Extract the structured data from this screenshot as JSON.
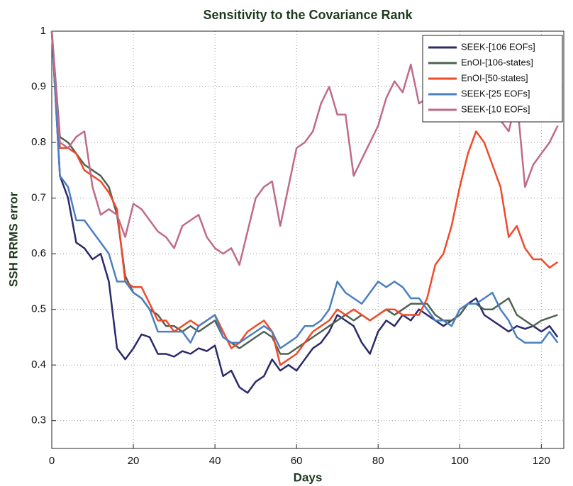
{
  "chart_data": {
    "type": "line",
    "title": "Sensitivity to the Covariance Rank",
    "x_label": "Days",
    "y_label": "SSH RRMS error",
    "x": [
      0,
      2,
      4,
      6,
      8,
      10,
      12,
      14,
      16,
      18,
      20,
      22,
      24,
      26,
      28,
      30,
      32,
      34,
      36,
      38,
      40,
      42,
      44,
      46,
      48,
      50,
      52,
      54,
      56,
      58,
      60,
      62,
      64,
      66,
      68,
      70,
      72,
      74,
      76,
      78,
      80,
      82,
      84,
      86,
      88,
      90,
      92,
      94,
      96,
      98,
      100,
      102,
      104,
      106,
      108,
      110,
      112,
      114,
      116,
      118,
      120,
      122,
      124
    ],
    "series": [
      {
        "name": "SEEK-[106 EOFs]",
        "color": "#2b2a6b",
        "values": [
          1.0,
          0.74,
          0.7,
          0.62,
          0.61,
          0.59,
          0.6,
          0.55,
          0.43,
          0.41,
          0.43,
          0.455,
          0.45,
          0.42,
          0.42,
          0.415,
          0.425,
          0.42,
          0.43,
          0.425,
          0.435,
          0.38,
          0.39,
          0.36,
          0.35,
          0.37,
          0.38,
          0.41,
          0.39,
          0.4,
          0.39,
          0.41,
          0.43,
          0.44,
          0.46,
          0.49,
          0.48,
          0.47,
          0.44,
          0.42,
          0.46,
          0.48,
          0.47,
          0.49,
          0.48,
          0.5,
          0.49,
          0.48,
          0.47,
          0.48,
          0.49,
          0.51,
          0.52,
          0.49,
          0.48,
          0.47,
          0.46,
          0.47,
          0.465,
          0.47,
          0.46,
          0.47,
          0.45
        ]
      },
      {
        "name": "EnOI-[106-states]",
        "color": "#4e6352",
        "values": [
          1.0,
          0.81,
          0.8,
          0.78,
          0.76,
          0.75,
          0.74,
          0.72,
          0.67,
          0.56,
          0.53,
          0.52,
          0.5,
          0.49,
          0.47,
          0.47,
          0.46,
          0.47,
          0.46,
          0.47,
          0.48,
          0.45,
          0.44,
          0.43,
          0.44,
          0.45,
          0.46,
          0.45,
          0.42,
          0.42,
          0.43,
          0.44,
          0.45,
          0.46,
          0.47,
          0.48,
          0.49,
          0.48,
          0.49,
          0.48,
          0.49,
          0.5,
          0.49,
          0.5,
          0.51,
          0.51,
          0.51,
          0.49,
          0.48,
          0.48,
          0.49,
          0.51,
          0.51,
          0.5,
          0.5,
          0.51,
          0.52,
          0.49,
          0.48,
          0.47,
          0.48,
          0.485,
          0.49
        ]
      },
      {
        "name": "EnOI-[50-states]",
        "color": "#f04a2a",
        "values": [
          1.0,
          0.79,
          0.79,
          0.78,
          0.75,
          0.74,
          0.73,
          0.71,
          0.68,
          0.55,
          0.54,
          0.54,
          0.51,
          0.48,
          0.48,
          0.46,
          0.47,
          0.48,
          0.47,
          0.48,
          0.49,
          0.46,
          0.43,
          0.44,
          0.46,
          0.47,
          0.48,
          0.46,
          0.4,
          0.41,
          0.42,
          0.44,
          0.46,
          0.47,
          0.48,
          0.5,
          0.49,
          0.5,
          0.49,
          0.48,
          0.49,
          0.5,
          0.5,
          0.49,
          0.49,
          0.49,
          0.52,
          0.58,
          0.6,
          0.65,
          0.72,
          0.78,
          0.82,
          0.8,
          0.76,
          0.72,
          0.63,
          0.65,
          0.61,
          0.59,
          0.59,
          0.575,
          0.585
        ]
      },
      {
        "name": "SEEK-[25 EOFs]",
        "color": "#4a7fc0",
        "values": [
          1.0,
          0.74,
          0.72,
          0.66,
          0.66,
          0.64,
          0.62,
          0.6,
          0.55,
          0.55,
          0.53,
          0.52,
          0.5,
          0.46,
          0.46,
          0.46,
          0.46,
          0.44,
          0.47,
          0.48,
          0.49,
          0.45,
          0.44,
          0.44,
          0.45,
          0.46,
          0.47,
          0.46,
          0.43,
          0.44,
          0.45,
          0.47,
          0.47,
          0.48,
          0.5,
          0.55,
          0.53,
          0.52,
          0.51,
          0.53,
          0.55,
          0.54,
          0.55,
          0.54,
          0.52,
          0.52,
          0.5,
          0.48,
          0.48,
          0.47,
          0.5,
          0.51,
          0.51,
          0.52,
          0.53,
          0.5,
          0.48,
          0.45,
          0.44,
          0.44,
          0.44,
          0.46,
          0.44
        ]
      },
      {
        "name": "SEEK-[10 EOFs]",
        "color": "#c06a8a",
        "values": [
          1.0,
          0.8,
          0.79,
          0.81,
          0.82,
          0.72,
          0.67,
          0.68,
          0.67,
          0.63,
          0.69,
          0.68,
          0.66,
          0.64,
          0.63,
          0.61,
          0.65,
          0.66,
          0.67,
          0.63,
          0.61,
          0.6,
          0.61,
          0.58,
          0.64,
          0.7,
          0.72,
          0.73,
          0.65,
          0.72,
          0.79,
          0.8,
          0.82,
          0.87,
          0.9,
          0.85,
          0.85,
          0.74,
          0.77,
          0.8,
          0.83,
          0.88,
          0.91,
          0.89,
          0.94,
          0.87,
          0.88,
          0.9,
          0.84,
          0.85,
          0.87,
          0.88,
          0.86,
          0.87,
          0.87,
          0.84,
          0.82,
          0.88,
          0.72,
          0.76,
          0.78,
          0.8,
          0.83
        ]
      }
    ],
    "xlim": [
      0,
      125.5
    ],
    "ylim": [
      0.25,
      1
    ],
    "xticks": [
      0,
      20,
      40,
      60,
      80,
      100,
      120
    ],
    "yticks": [
      0.3,
      0.4,
      0.5,
      0.6,
      0.7,
      0.8,
      0.9,
      1
    ],
    "grid": true,
    "legend": "upper right"
  }
}
